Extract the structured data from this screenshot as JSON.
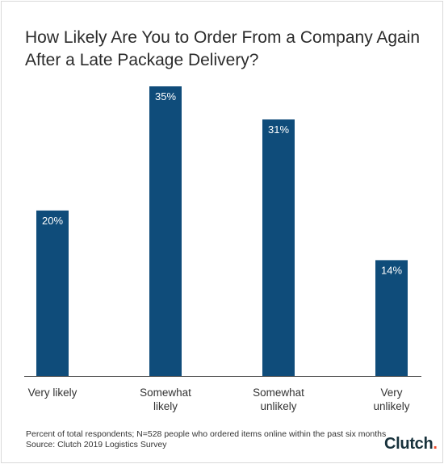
{
  "title_line1": "How Likely Are You to Order From a Company Again",
  "title_line2": "After a Late Package Delivery?",
  "footnote_line1": "Percent of total respondents; N=528 people who ordered items online within the past six months",
  "footnote_line2": "Source: Clutch 2019 Logistics Survey",
  "logo_text": "Clutch",
  "colors": {
    "bar": "#0f4c7a",
    "axis": "#555555",
    "text": "#333333",
    "label": "#ffffff",
    "logo_dot": "#ef4a2b"
  },
  "chart_data": {
    "type": "bar",
    "title": "How Likely Are You to Order From a Company Again After a Late Package Delivery?",
    "categories": [
      [
        "Very likely"
      ],
      [
        "Somewhat",
        "likely"
      ],
      [
        "Somewhat",
        "unlikely"
      ],
      [
        "Very",
        "unlikely"
      ]
    ],
    "values": [
      20,
      35,
      31,
      14
    ],
    "data_labels": [
      "20%",
      "35%",
      "31%",
      "14%"
    ],
    "unit": "%",
    "ylim": [
      0,
      35
    ],
    "grid": false,
    "legend": "none"
  }
}
